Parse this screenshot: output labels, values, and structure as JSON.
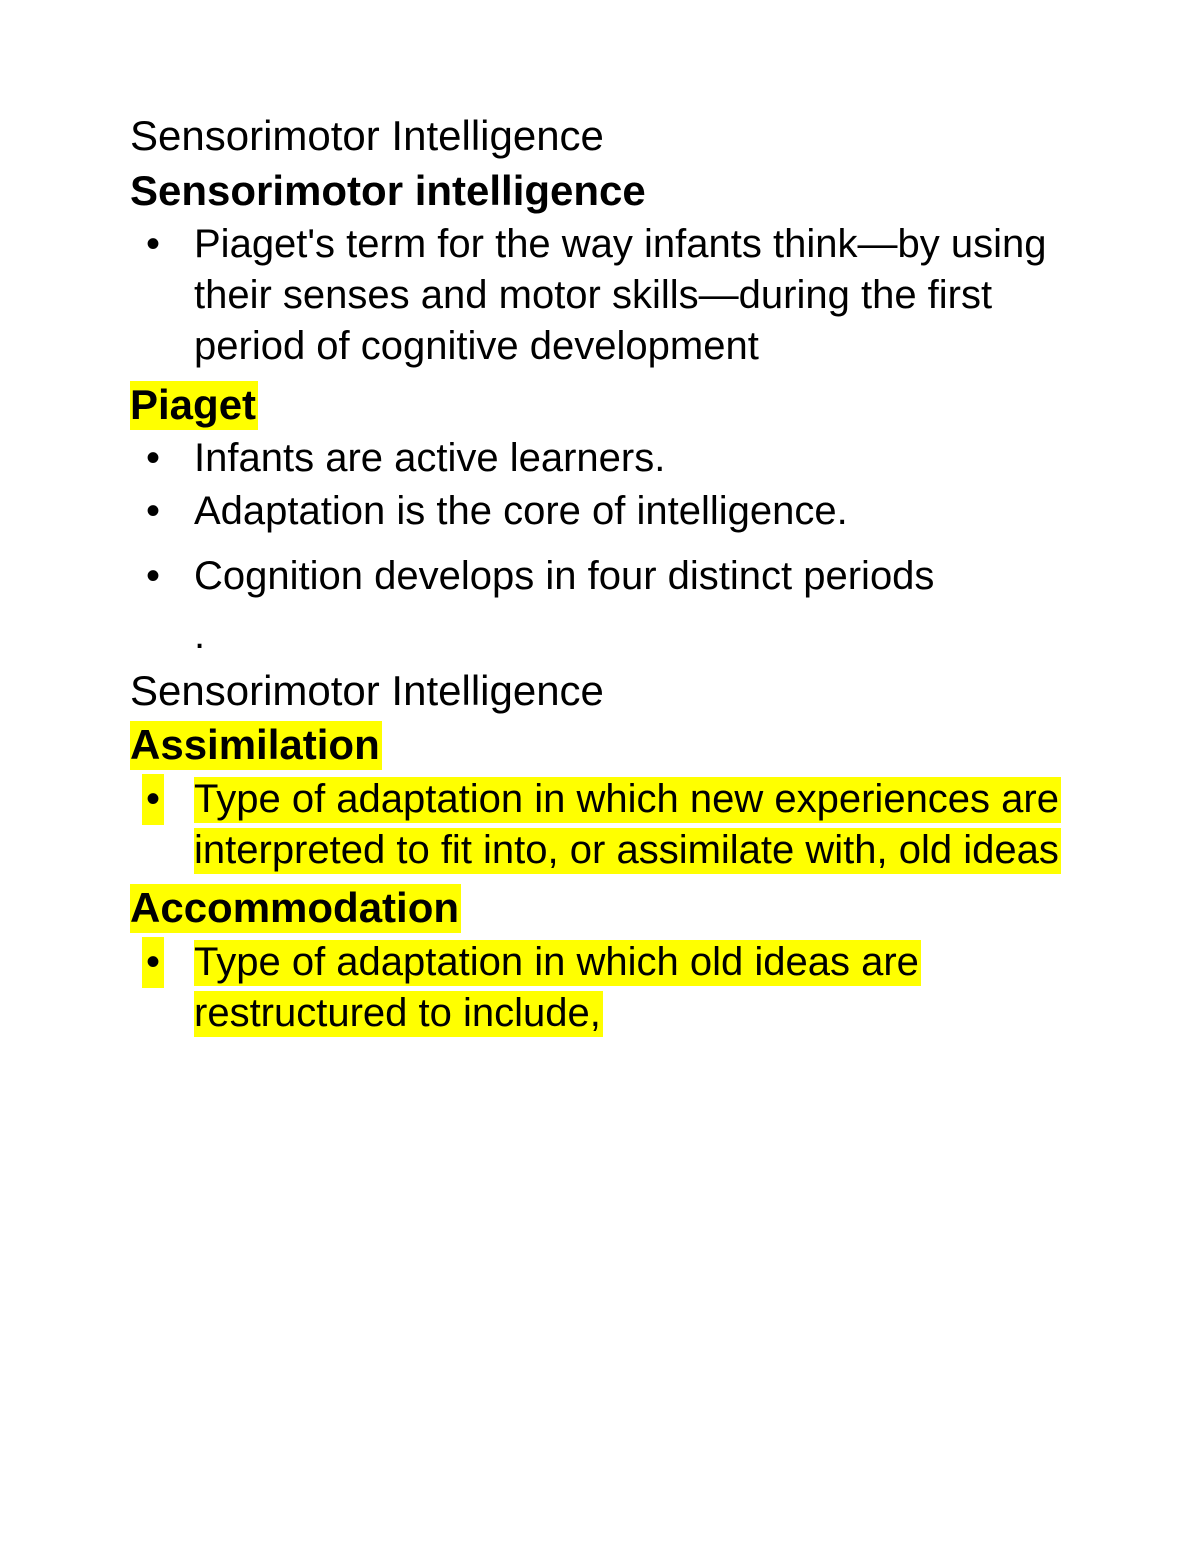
{
  "colors": {
    "background": "#ffffff",
    "text": "#000000",
    "highlight": "#ffff00"
  },
  "typography": {
    "font_family": "Arial, Helvetica, sans-serif",
    "title_fontsize": 42,
    "heading_fontsize": 42,
    "body_fontsize": 40,
    "title_weight": "normal",
    "heading_weight": "bold"
  },
  "section1": {
    "title": "Sensorimotor Intelligence",
    "heading": "Sensorimotor intelligence",
    "bullets": [
      "Piaget's term for the way infants think—by using their senses and motor skills—during the first period of cognitive development"
    ]
  },
  "section2": {
    "heading": "Piaget",
    "heading_highlighted": true,
    "bullets": [
      "Infants are active learners.",
      "Adaptation is the core of intelligence.",
      "Cognition develops in four distinct periods"
    ]
  },
  "dot": ".",
  "section3": {
    "title": "Sensorimotor Intelligence",
    "heading": "Assimilation",
    "heading_highlighted": true,
    "bullets": [
      "Type of adaptation in which new experiences are interpreted to fit into, or assimilate with, old ideas"
    ],
    "bullets_highlighted": true
  },
  "section4": {
    "heading": "Accommodation",
    "heading_highlighted": true,
    "bullets": [
      "Type of adaptation in which old ideas are restructured to include,"
    ],
    "bullets_highlighted": true
  }
}
